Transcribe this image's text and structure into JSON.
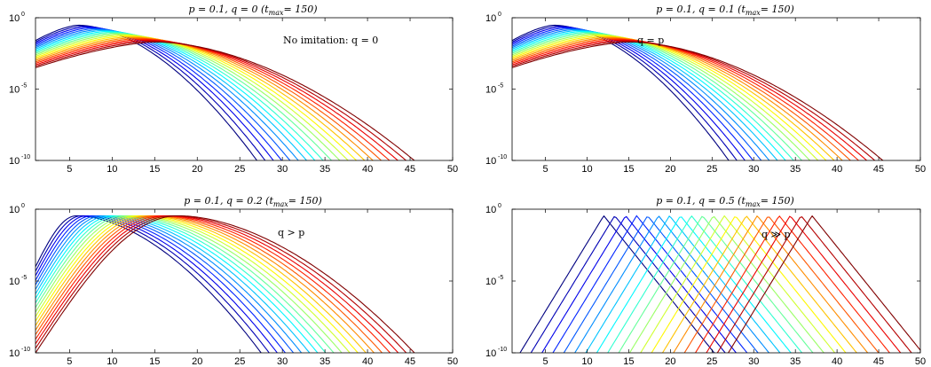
{
  "chart_data": [
    {
      "type": "line",
      "title": "p = 0.1, q = 0 (t_max= 150)",
      "title_parts": {
        "main": "p = 0.1, q = 0 (t",
        "sub": "max",
        "end": "= 150)"
      },
      "annotation": "No imitation: q = 0",
      "xlim": [
        1,
        50
      ],
      "xticks": [
        5,
        10,
        15,
        20,
        25,
        30,
        35,
        40,
        45,
        50
      ],
      "yscale": "log",
      "ylim": [
        1e-10,
        1
      ],
      "yticks": [
        {
          "base": "10",
          "exp": "0"
        },
        {
          "base": "10",
          "exp": "-5"
        },
        {
          "base": "10",
          "exp": "-10"
        }
      ],
      "grid": false,
      "model": {
        "kind": "smooth",
        "n_series": 20,
        "peak_x_first": 6,
        "peak_x_last": 15,
        "peak_y_first": 0.3,
        "peak_y_last": 0.02,
        "cross_x_first": 27,
        "cross_x_last": 45.5
      }
    },
    {
      "type": "line",
      "title": "p = 0.1, q = 0.1 (t_max= 150)",
      "title_parts": {
        "main": "p = 0.1, q = 0.1 (t",
        "sub": "max",
        "end": "= 150)"
      },
      "annotation": "q = p",
      "xlim": [
        1,
        50
      ],
      "xticks": [
        5,
        10,
        15,
        20,
        25,
        30,
        35,
        40,
        45,
        50
      ],
      "xticklabels": [
        "5",
        "10",
        "15",
        "20",
        "25",
        "30",
        "35",
        "40",
        "45",
        "50"
      ],
      "yscale": "log",
      "ylim": [
        1e-10,
        1
      ],
      "yticks": [
        {
          "base": "10",
          "exp": "0"
        },
        {
          "base": "10",
          "exp": "-5"
        },
        {
          "base": "10",
          "exp": "-10"
        }
      ],
      "grid": false,
      "model": {
        "kind": "smooth",
        "n_series": 20,
        "peak_x_first": 6,
        "peak_x_last": 15,
        "peak_y_first": 0.3,
        "peak_y_last": 0.02,
        "cross_x_first": 27,
        "cross_x_last": 45.5
      }
    },
    {
      "type": "line",
      "title": "p = 0.1, q = 0.2 (t_max= 150)",
      "title_parts": {
        "main": "p = 0.1, q = 0.2 (t",
        "sub": "max",
        "end": "= 150)"
      },
      "annotation": "q > p",
      "xlim": [
        1,
        50
      ],
      "xticks": [
        5,
        10,
        15,
        20,
        25,
        30,
        35,
        40,
        45,
        50
      ],
      "yscale": "log",
      "ylim": [
        1e-10,
        1
      ],
      "yticks": [
        {
          "base": "10",
          "exp": "0"
        },
        {
          "base": "10",
          "exp": "-5"
        },
        {
          "base": "10",
          "exp": "-10"
        }
      ],
      "grid": false,
      "model": {
        "kind": "peaked",
        "n_series": 20,
        "peak_x_first": 5.8,
        "peak_x_last": 17.8,
        "peak_y": 0.35,
        "left_low_first": 0.0001,
        "left_low_last": 1e-10,
        "cross_x_first": 27.5,
        "cross_x_last": 45.5
      }
    },
    {
      "type": "line",
      "title": "p = 0.1, q = 0.5 (t_max= 150)",
      "title_parts": {
        "main": "p = 0.1, q = 0.5 (t",
        "sub": "max",
        "end": "= 150)"
      },
      "annotation": "q ≫ p",
      "xlim": [
        1,
        50
      ],
      "xticks": [
        5,
        10,
        15,
        20,
        25,
        30,
        35,
        40,
        45,
        50
      ],
      "yscale": "log",
      "ylim": [
        1e-10,
        1
      ],
      "yticks": [
        {
          "base": "10",
          "exp": "0"
        },
        {
          "base": "10",
          "exp": "-5"
        },
        {
          "base": "10",
          "exp": "-10"
        }
      ],
      "grid": false,
      "model": {
        "kind": "triangle",
        "n_series": 20,
        "peak_x_first": 12,
        "peak_x_last": 37,
        "peak_y": 0.35,
        "slope_up": 0.95,
        "slope_down": 0.72
      }
    }
  ],
  "colors": {
    "series_colormap": "jet",
    "series_first": "#00008f",
    "series_last": "#800000",
    "axes": "#000000"
  }
}
